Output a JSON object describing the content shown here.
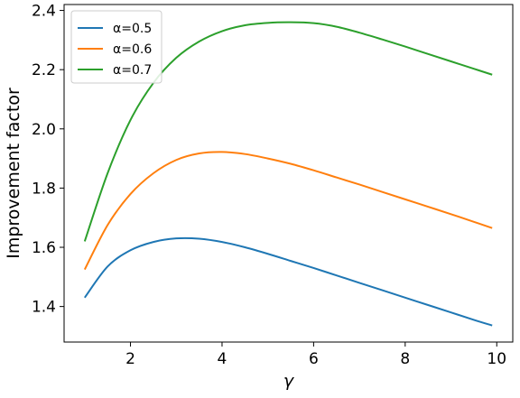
{
  "chart_data": {
    "type": "line",
    "xlabel": "γ",
    "ylabel": "Improvement factor",
    "xlim": [
      0.55,
      10.35
    ],
    "ylim": [
      1.28,
      2.42
    ],
    "xticks": [
      2,
      4,
      6,
      8,
      10
    ],
    "yticks": [
      1.4,
      1.6,
      1.8,
      2.0,
      2.2,
      2.4
    ],
    "xtick_labels": [
      "2",
      "4",
      "6",
      "8",
      "10"
    ],
    "ytick_labels": [
      "1.4",
      "1.6",
      "1.8",
      "2.0",
      "2.2",
      "2.4"
    ],
    "grid": false,
    "legend": "top-left",
    "x": [
      1.0,
      1.5,
      2.0,
      2.5,
      3.0,
      3.5,
      4.0,
      4.5,
      5.0,
      5.5,
      6.0,
      6.5,
      7.0,
      7.5,
      8.0,
      8.5,
      9.0,
      9.5,
      9.9
    ],
    "series": [
      {
        "name": "α=0.5",
        "color": "#1f77b4",
        "values": [
          1.43,
          1.535,
          1.59,
          1.618,
          1.63,
          1.629,
          1.618,
          1.6,
          1.578,
          1.554,
          1.53,
          1.505,
          1.48,
          1.455,
          1.43,
          1.405,
          1.38,
          1.355,
          1.336
        ]
      },
      {
        "name": "α=0.6",
        "color": "#ff7f0e",
        "values": [
          1.525,
          1.675,
          1.78,
          1.85,
          1.895,
          1.917,
          1.922,
          1.915,
          1.9,
          1.882,
          1.86,
          1.836,
          1.812,
          1.787,
          1.762,
          1.737,
          1.712,
          1.686,
          1.665
        ]
      },
      {
        "name": "α=0.7",
        "color": "#2ca02c",
        "values": [
          1.62,
          1.85,
          2.03,
          2.155,
          2.24,
          2.295,
          2.33,
          2.35,
          2.358,
          2.36,
          2.357,
          2.345,
          2.325,
          2.302,
          2.278,
          2.253,
          2.228,
          2.203,
          2.183
        ]
      }
    ]
  }
}
